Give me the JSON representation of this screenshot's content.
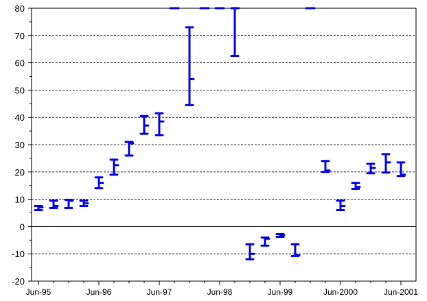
{
  "chart_data": {
    "type": "hlc-bar",
    "title": "",
    "xlabel": "",
    "ylabel": "",
    "ylim": [
      -20,
      80
    ],
    "y_ticks": [
      -20,
      -10,
      0,
      10,
      20,
      30,
      40,
      50,
      60,
      70,
      80
    ],
    "x_tick_labels": [
      "Jun-95",
      "Jun-96",
      "Jun-97",
      "Jun-98",
      "Jun-99",
      "Jun-2000",
      "Jun-2001"
    ],
    "grid": "horizontal dashed",
    "colors": {
      "series": "#0000ee",
      "grid": "#000000"
    },
    "series": [
      {
        "points": [
          {
            "x": "Jun-95",
            "high": 7.5,
            "low": 6,
            "close": 7
          },
          {
            "x": "Sep-95",
            "high": 9.5,
            "low": 6.8,
            "close": 7.5
          },
          {
            "x": "Dec-95",
            "high": 9.8,
            "low": 6.8,
            "close": 9.5
          },
          {
            "x": "Mar-96",
            "high": 9.5,
            "low": 7.5,
            "close": 8.5
          },
          {
            "x": "Jun-96",
            "high": 18,
            "low": 14,
            "close": 16
          },
          {
            "x": "Sep-96",
            "high": 24.5,
            "low": 19,
            "close": 22.5
          },
          {
            "x": "Dec-96",
            "high": 31,
            "low": 26,
            "close": 30.5
          },
          {
            "x": "Mar-97",
            "high": 40.5,
            "low": 34,
            "close": 37
          },
          {
            "x": "Jun-97",
            "high": 41.5,
            "low": 33.5,
            "close": 38.5
          },
          {
            "x": "Sep-97",
            "high": 80,
            "low": 80,
            "close": 80
          },
          {
            "x": "Dec-97",
            "high": 73,
            "low": 44.5,
            "close": 54
          },
          {
            "x": "Mar-98",
            "high": 80,
            "low": 80,
            "close": 80
          },
          {
            "x": "Jun-98",
            "high": 80,
            "low": 80,
            "close": 80
          },
          {
            "x": "Sep-98",
            "high": 80,
            "low": 62.5,
            "close": 80
          },
          {
            "x": "Dec-98",
            "high": -6.5,
            "low": -12,
            "close": -10
          },
          {
            "x": "Mar-99",
            "high": -4,
            "low": -7,
            "close": -4.5
          },
          {
            "x": "Jun-99",
            "high": -2.8,
            "low": -3.8,
            "close": -3.2
          },
          {
            "x": "Sep-99",
            "high": -6.5,
            "low": -10.8,
            "close": -10.5
          },
          {
            "x": "Dec-99",
            "high": 80,
            "low": 80,
            "close": 80
          },
          {
            "x": "Mar-2000",
            "high": 24,
            "low": 20,
            "close": 20.5
          },
          {
            "x": "Jun-2000",
            "high": 9.5,
            "low": 6,
            "close": 7.5
          },
          {
            "x": "Sep-2000",
            "high": 16,
            "low": 13.8,
            "close": 14.5
          },
          {
            "x": "Dec-2000",
            "high": 23,
            "low": 19.5,
            "close": 21.5
          },
          {
            "x": "Mar-2001",
            "high": 26.5,
            "low": 19.8,
            "close": 23.5
          },
          {
            "x": "Jun-2001",
            "high": 23.5,
            "low": 18.5,
            "close": 19
          }
        ]
      }
    ]
  }
}
